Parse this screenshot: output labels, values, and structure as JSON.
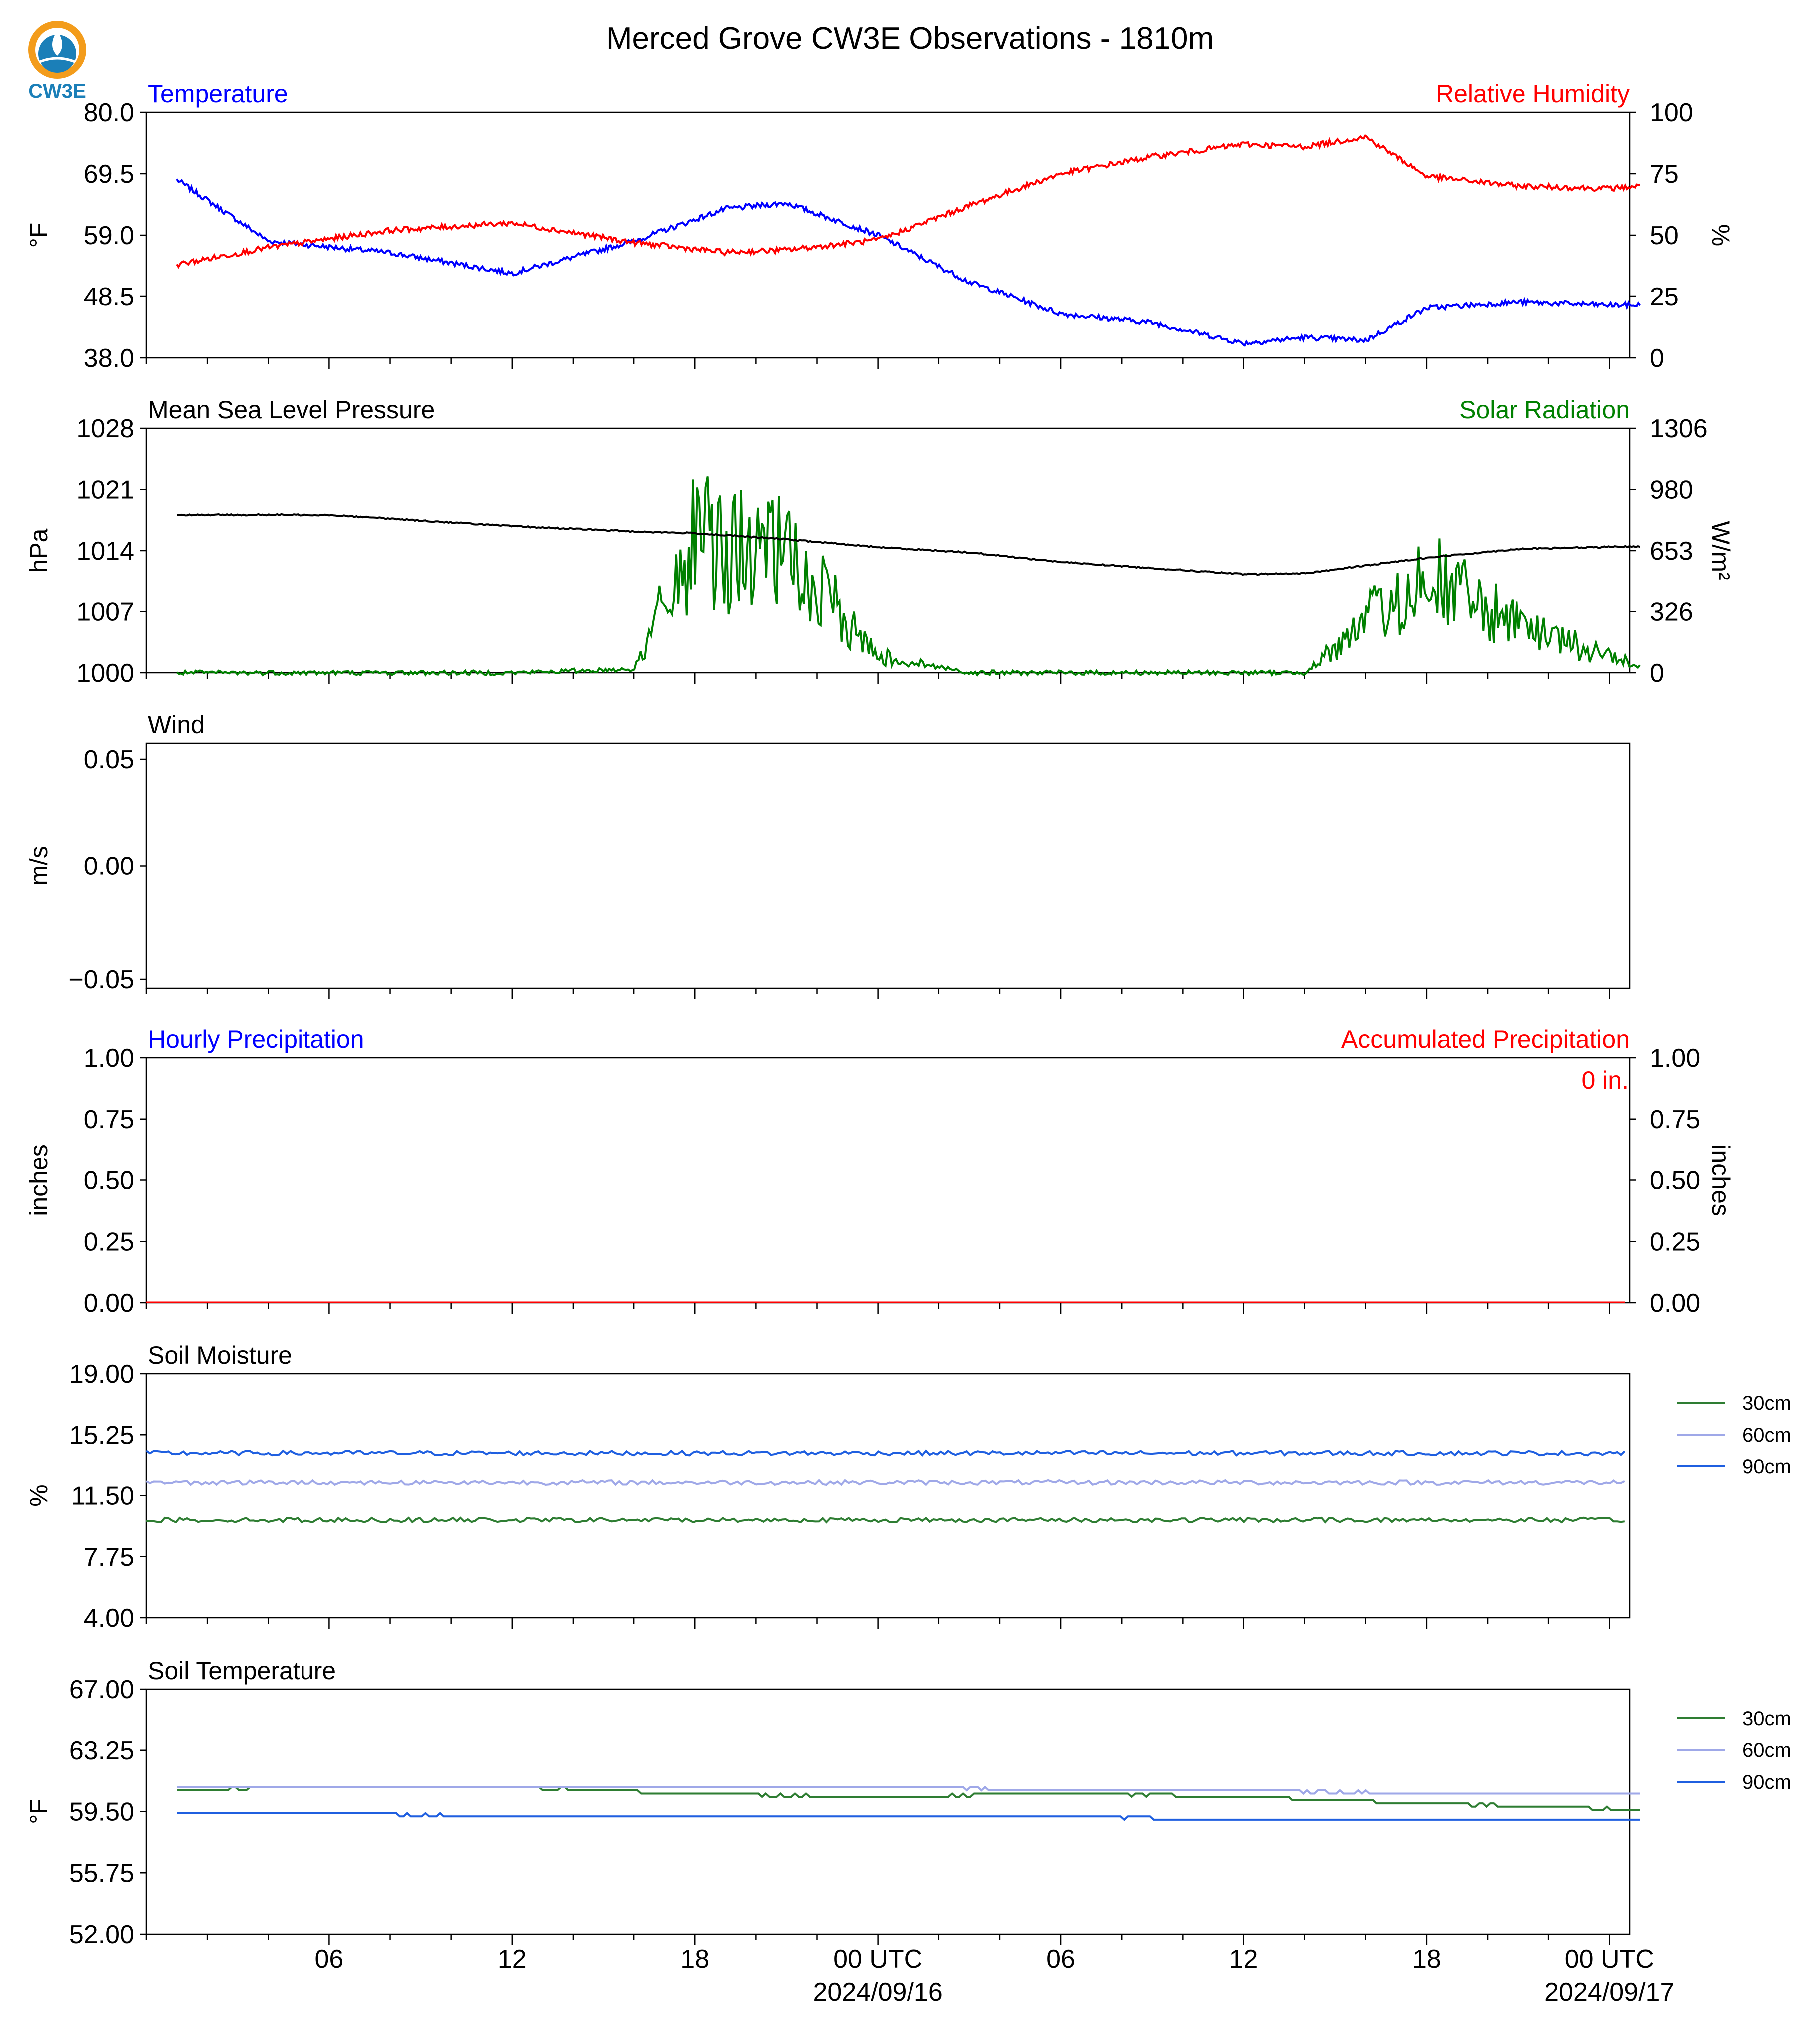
{
  "title": "Merced Grove CW3E Observations - 1810m",
  "logo_text": "CW3E",
  "colors": {
    "temperature": "#0000ff",
    "humidity": "#ff0000",
    "pressure": "#000000",
    "solar": "#008000",
    "soil_30": "#2e7d32",
    "soil_60": "#9fa8e8",
    "soil_90": "#1f5fe0",
    "logo_orange": "#f39c1b",
    "logo_blue": "#1b7fb8"
  },
  "x_axis": {
    "tick_labels": [
      "06",
      "12",
      "18",
      "00 UTC",
      "06",
      "12",
      "18",
      "00 UTC"
    ],
    "date_labels": [
      "2024/09/16",
      "2024/09/17"
    ]
  },
  "chart_data": [
    {
      "type": "line",
      "left_title": "Temperature",
      "right_title": "Relative Humidity",
      "ylabel": "°F",
      "ylabel_right": "%",
      "yticks": [
        "80.0",
        "69.5",
        "59.0",
        "48.5",
        "38.0"
      ],
      "yticks_right": [
        "100",
        "75",
        "50",
        "25",
        "0"
      ],
      "ylim": [
        38.0,
        80.0
      ],
      "ylim_right": [
        0,
        100
      ],
      "x": [
        "2024-09-15T01:00Z",
        "2024-09-15T04:00Z",
        "2024-09-15T08:00Z",
        "2024-09-15T12:00Z",
        "2024-09-15T16:00Z",
        "2024-09-15T19:00Z",
        "2024-09-15T21:00Z",
        "2024-09-16T00:00Z",
        "2024-09-16T03:00Z",
        "2024-09-16T06:00Z",
        "2024-09-16T09:00Z",
        "2024-09-16T12:00Z",
        "2024-09-16T14:00Z",
        "2024-09-16T16:00Z",
        "2024-09-16T18:00Z",
        "2024-09-16T21:00Z",
        "2024-09-17T00:00Z",
        "2024-09-17T01:00Z"
      ],
      "series": [
        {
          "name": "Temperature",
          "axis": "left",
          "values": [
            68.5,
            58.0,
            56.0,
            52.5,
            58.0,
            63.5,
            64.5,
            59.0,
            51.0,
            45.5,
            44.0,
            40.5,
            41.5,
            41.0,
            46.5,
            47.5,
            47.0,
            47.0
          ]
        },
        {
          "name": "Relative Humidity",
          "axis": "right",
          "values": [
            38,
            45,
            52,
            55,
            47,
            43,
            44,
            48,
            62,
            75,
            82,
            87,
            86,
            90,
            74,
            70,
            69,
            70
          ]
        }
      ]
    },
    {
      "type": "line",
      "left_title": "Mean Sea Level Pressure",
      "right_title": "Solar Radiation",
      "ylabel": "hPa",
      "ylabel_right": "W/m²",
      "yticks": [
        "1028",
        "1021",
        "1014",
        "1007",
        "1000"
      ],
      "yticks_right": [
        "1306",
        "980",
        "653",
        "326",
        "0"
      ],
      "ylim": [
        1000,
        1028
      ],
      "ylim_right": [
        0,
        1306
      ],
      "x": [
        "2024-09-15T01:00Z",
        "2024-09-15T06:00Z",
        "2024-09-15T12:00Z",
        "2024-09-15T16:00Z",
        "2024-09-15T18:00Z",
        "2024-09-15T21:00Z",
        "2024-09-16T00:00Z",
        "2024-09-16T03:00Z",
        "2024-09-16T06:00Z",
        "2024-09-16T09:00Z",
        "2024-09-16T12:00Z",
        "2024-09-16T14:00Z",
        "2024-09-16T18:00Z",
        "2024-09-16T21:00Z",
        "2024-09-17T01:00Z"
      ],
      "series": [
        {
          "name": "Mean Sea Level Pressure",
          "axis": "left",
          "values": [
            1018.1,
            1018.1,
            1016.8,
            1016.2,
            1016.0,
            1015.3,
            1014.4,
            1013.8,
            1012.7,
            1012.0,
            1011.3,
            1011.4,
            1013.2,
            1014.2,
            1014.5
          ]
        },
        {
          "name": "Solar Radiation",
          "axis": "right",
          "values": [
            0,
            0,
            0,
            20,
            930,
            820,
            120,
            0,
            0,
            0,
            0,
            0,
            700,
            320,
            50
          ]
        }
      ]
    },
    {
      "type": "line",
      "left_title": "Wind",
      "ylabel": "m/s",
      "yticks": [
        "0.05",
        "0.00",
        "−0.05"
      ],
      "ylim": [
        -0.055,
        0.055
      ],
      "series": []
    },
    {
      "type": "bar",
      "left_title": "Hourly Precipitation",
      "right_title": "Accumulated Precipitation",
      "ylabel": "inches",
      "ylabel_right": "inches",
      "yticks": [
        "1.00",
        "0.75",
        "0.50",
        "0.25",
        "0.00"
      ],
      "yticks_right": [
        "1.00",
        "0.75",
        "0.50",
        "0.25",
        "0.00"
      ],
      "ylim": [
        0,
        1
      ],
      "ylim_right": [
        0,
        1
      ],
      "annotation": "0 in.",
      "series": [
        {
          "name": "Hourly Precipitation",
          "values": [
            0
          ]
        },
        {
          "name": "Accumulated Precipitation",
          "values": [
            0
          ]
        }
      ]
    },
    {
      "type": "line",
      "left_title": "Soil Moisture",
      "ylabel": "%",
      "yticks": [
        "19.00",
        "15.25",
        "11.50",
        "7.75",
        "4.00"
      ],
      "ylim": [
        4.0,
        19.0
      ],
      "legend": [
        "30cm",
        "60cm",
        "90cm"
      ],
      "legend_position": "right",
      "series": [
        {
          "name": "30cm",
          "values": [
            10.0
          ]
        },
        {
          "name": "60cm",
          "values": [
            12.3
          ]
        },
        {
          "name": "90cm",
          "values": [
            14.1
          ]
        }
      ]
    },
    {
      "type": "line",
      "left_title": "Soil Temperature",
      "ylabel": "°F",
      "yticks": [
        "67.00",
        "63.25",
        "59.50",
        "55.75",
        "52.00"
      ],
      "ylim": [
        52.0,
        67.0
      ],
      "legend": [
        "30cm",
        "60cm",
        "90cm"
      ],
      "legend_position": "right",
      "x": [
        "2024-09-15T01:00Z",
        "2024-09-15T05:00Z",
        "2024-09-15T12:00Z",
        "2024-09-15T18:00Z",
        "2024-09-16T00:00Z",
        "2024-09-16T06:00Z",
        "2024-09-16T12:00Z",
        "2024-09-16T18:00Z",
        "2024-09-17T01:00Z"
      ],
      "series": [
        {
          "name": "30cm",
          "values": [
            60.8,
            61.0,
            61.0,
            60.6,
            60.4,
            60.6,
            60.4,
            60.0,
            59.6
          ]
        },
        {
          "name": "60cm",
          "values": [
            61.0,
            61.0,
            61.0,
            61.0,
            61.0,
            60.8,
            60.8,
            60.6,
            60.6
          ]
        },
        {
          "name": "90cm",
          "values": [
            59.4,
            59.4,
            59.2,
            59.2,
            59.2,
            59.2,
            59.0,
            59.0,
            59.0
          ]
        }
      ]
    }
  ]
}
